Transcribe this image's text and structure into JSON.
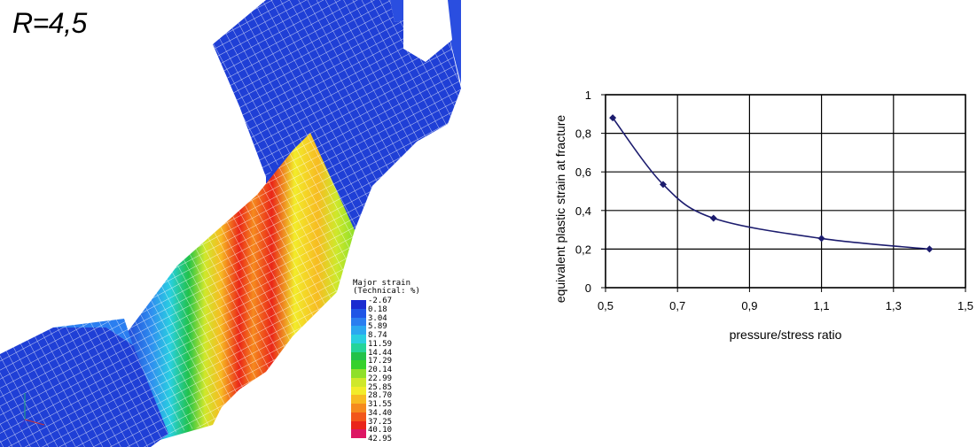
{
  "left_panel": {
    "label": "R=4,5",
    "legend": {
      "title_line1": "Major strain",
      "title_line2": "(Technical: %)",
      "values": [
        "-2.67",
        "0.18",
        "3.04",
        "5.89",
        "8.74",
        "11.59",
        "14.44",
        "17.29",
        "20.14",
        "22.99",
        "25.85",
        "28.70",
        "31.55",
        "34.40",
        "37.25",
        "40.10",
        "42.95"
      ],
      "colors": [
        "#1a2bd0",
        "#1f55e6",
        "#2a7ef0",
        "#2ba8f0",
        "#29cfe0",
        "#24d49a",
        "#22c24a",
        "#36d12c",
        "#8fe02a",
        "#cfe82b",
        "#f2ec2a",
        "#f7bb22",
        "#f58a1e",
        "#f2561a",
        "#ea2519",
        "#dd1764",
        "#d41bd0"
      ]
    }
  },
  "chart_data": {
    "type": "line",
    "x": [
      0.52,
      0.66,
      0.8,
      1.1,
      1.4
    ],
    "y": [
      0.88,
      0.535,
      0.36,
      0.255,
      0.2
    ],
    "xlabel": "pressure/stress ratio",
    "ylabel": "equivalent plastic strain at fracture",
    "xlim": [
      0.5,
      1.5
    ],
    "ylim": [
      0,
      1
    ],
    "xticks": [
      0.5,
      0.7,
      0.9,
      1.1,
      1.3,
      1.5
    ],
    "yticks": [
      0,
      0.2,
      0.4,
      0.6,
      0.8,
      1
    ],
    "xtick_labels": [
      "0,5",
      "0,7",
      "0,9",
      "1,1",
      "1,3",
      "1,5"
    ],
    "ytick_labels": [
      "0",
      "0,2",
      "0,4",
      "0,6",
      "0,8",
      "1"
    ],
    "grid": true,
    "line_color": "#1c1c6e",
    "smooth": true
  }
}
